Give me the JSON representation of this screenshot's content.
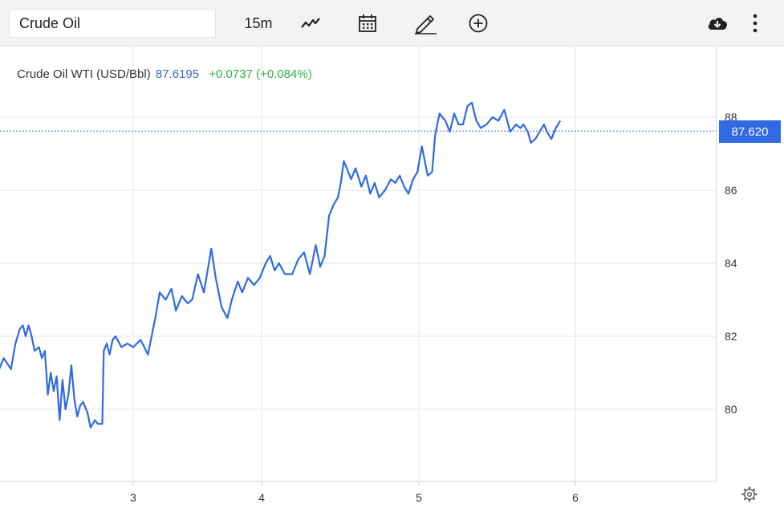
{
  "toolbar": {
    "symbol_input": "Crude Oil",
    "interval": "15m",
    "icons": [
      "line-chart-icon",
      "calendar-icon",
      "draw-pencil-icon",
      "add-circle-icon",
      "cloud-download-icon",
      "more-vertical-icon"
    ]
  },
  "legend": {
    "name": "Crude Oil WTI (USD/Bbl)",
    "price": "87.6195",
    "change": "+0.0737 (+0.084%)"
  },
  "price_tag": "87.620",
  "colors": {
    "line": "#2f6ae3",
    "up": "#2eae48",
    "grid": "#e6e6e6"
  },
  "chart_data": {
    "type": "line",
    "title": "",
    "xlabel": "",
    "ylabel": "",
    "x_ticks": [
      "3",
      "4",
      "5",
      "6"
    ],
    "y_ticks": [
      "80",
      "82",
      "84",
      "86",
      "88"
    ],
    "ylim": [
      78.0,
      89.5
    ],
    "xlim": [
      2.0,
      6.9
    ],
    "grid": true,
    "current_value": 87.62,
    "series": [
      {
        "name": "",
        "points": [
          [
            2.0,
            81.1
          ],
          [
            2.03,
            81.0
          ],
          [
            2.08,
            81.0
          ],
          [
            2.12,
            81.4
          ],
          [
            2.17,
            81.1
          ],
          [
            2.2,
            81.8
          ],
          [
            2.23,
            82.2
          ],
          [
            2.25,
            82.3
          ],
          [
            2.27,
            82.0
          ],
          [
            2.29,
            82.3
          ],
          [
            2.31,
            82.0
          ],
          [
            2.33,
            81.6
          ],
          [
            2.36,
            81.7
          ],
          [
            2.38,
            81.4
          ],
          [
            2.4,
            81.6
          ],
          [
            2.42,
            80.4
          ],
          [
            2.44,
            81.0
          ],
          [
            2.46,
            80.5
          ],
          [
            2.48,
            80.9
          ],
          [
            2.5,
            79.7
          ],
          [
            2.52,
            80.8
          ],
          [
            2.54,
            80.0
          ],
          [
            2.56,
            80.4
          ],
          [
            2.58,
            81.2
          ],
          [
            2.6,
            80.3
          ],
          [
            2.62,
            79.8
          ],
          [
            2.64,
            80.1
          ],
          [
            2.66,
            80.2
          ],
          [
            2.69,
            79.9
          ],
          [
            2.71,
            79.5
          ],
          [
            2.74,
            79.7
          ],
          [
            2.76,
            79.6
          ],
          [
            2.79,
            79.6
          ],
          [
            2.8,
            81.6
          ],
          [
            2.82,
            81.8
          ],
          [
            2.84,
            81.5
          ],
          [
            2.86,
            81.9
          ],
          [
            2.88,
            82.0
          ],
          [
            2.92,
            81.7
          ],
          [
            2.96,
            81.8
          ],
          [
            3.0,
            81.7
          ],
          [
            3.05,
            81.9
          ],
          [
            3.1,
            81.5
          ],
          [
            3.15,
            82.5
          ],
          [
            3.18,
            83.2
          ],
          [
            3.22,
            83.0
          ],
          [
            3.26,
            83.3
          ],
          [
            3.29,
            82.7
          ],
          [
            3.33,
            83.1
          ],
          [
            3.37,
            82.9
          ],
          [
            3.4,
            83.0
          ],
          [
            3.44,
            83.7
          ],
          [
            3.48,
            83.2
          ],
          [
            3.53,
            84.4
          ],
          [
            3.56,
            83.6
          ],
          [
            3.6,
            82.8
          ],
          [
            3.64,
            82.5
          ],
          [
            3.67,
            83.0
          ],
          [
            3.71,
            83.5
          ],
          [
            3.74,
            83.2
          ],
          [
            3.78,
            83.6
          ],
          [
            3.82,
            83.4
          ],
          [
            3.86,
            83.6
          ],
          [
            3.9,
            84.0
          ],
          [
            3.93,
            84.2
          ],
          [
            3.96,
            83.8
          ],
          [
            3.99,
            84.0
          ],
          [
            4.03,
            83.7
          ],
          [
            4.08,
            83.7
          ],
          [
            4.12,
            84.1
          ],
          [
            4.16,
            84.3
          ],
          [
            4.2,
            83.7
          ],
          [
            4.24,
            84.5
          ],
          [
            4.27,
            83.9
          ],
          [
            4.3,
            84.2
          ],
          [
            4.33,
            85.3
          ],
          [
            4.36,
            85.6
          ],
          [
            4.39,
            85.8
          ],
          [
            4.41,
            86.2
          ],
          [
            4.43,
            86.8
          ],
          [
            4.45,
            86.6
          ],
          [
            4.48,
            86.3
          ],
          [
            4.51,
            86.6
          ],
          [
            4.55,
            86.1
          ],
          [
            4.58,
            86.4
          ],
          [
            4.61,
            85.9
          ],
          [
            4.64,
            86.2
          ],
          [
            4.67,
            85.8
          ],
          [
            4.71,
            86.0
          ],
          [
            4.75,
            86.3
          ],
          [
            4.78,
            86.2
          ],
          [
            4.81,
            86.4
          ],
          [
            4.84,
            86.1
          ],
          [
            4.87,
            85.9
          ],
          [
            4.9,
            86.3
          ],
          [
            4.93,
            86.5
          ],
          [
            4.96,
            87.2
          ],
          [
            5.0,
            86.4
          ],
          [
            5.03,
            86.5
          ],
          [
            5.05,
            87.5
          ],
          [
            5.08,
            88.1
          ],
          [
            5.12,
            87.9
          ],
          [
            5.15,
            87.6
          ],
          [
            5.18,
            88.1
          ],
          [
            5.21,
            87.8
          ],
          [
            5.24,
            87.8
          ],
          [
            5.27,
            88.3
          ],
          [
            5.3,
            88.4
          ],
          [
            5.33,
            87.9
          ],
          [
            5.36,
            87.7
          ],
          [
            5.4,
            87.8
          ],
          [
            5.44,
            88.0
          ],
          [
            5.48,
            87.9
          ],
          [
            5.52,
            88.2
          ],
          [
            5.56,
            87.6
          ],
          [
            5.6,
            87.8
          ],
          [
            5.63,
            87.7
          ],
          [
            5.65,
            87.8
          ],
          [
            5.68,
            87.6
          ],
          [
            5.7,
            87.3
          ],
          [
            5.73,
            87.4
          ],
          [
            5.76,
            87.6
          ],
          [
            5.79,
            87.8
          ],
          [
            5.81,
            87.6
          ],
          [
            5.84,
            87.4
          ],
          [
            5.87,
            87.7
          ],
          [
            5.9,
            87.9
          ]
        ]
      }
    ]
  }
}
